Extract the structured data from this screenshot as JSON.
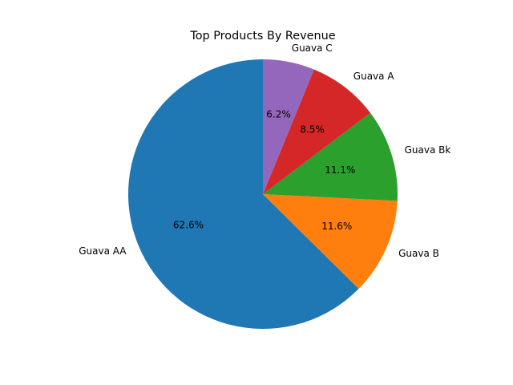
{
  "chart_data": {
    "type": "pie",
    "title": "Top Products By Revenue",
    "categories": [
      "Guava AA",
      "Guava B",
      "Guava Bk",
      "Guava A",
      "Guava C"
    ],
    "values": [
      62.6,
      11.6,
      11.1,
      8.5,
      6.2
    ],
    "value_labels": [
      "62.6%",
      "11.6%",
      "11.1%",
      "8.5%",
      "6.2%"
    ],
    "colors": [
      "#1f77b4",
      "#ff7f0e",
      "#2ca02c",
      "#d62728",
      "#9467bd"
    ],
    "start_angle_deg": 90,
    "direction": "counterclockwise",
    "legend": "none"
  }
}
